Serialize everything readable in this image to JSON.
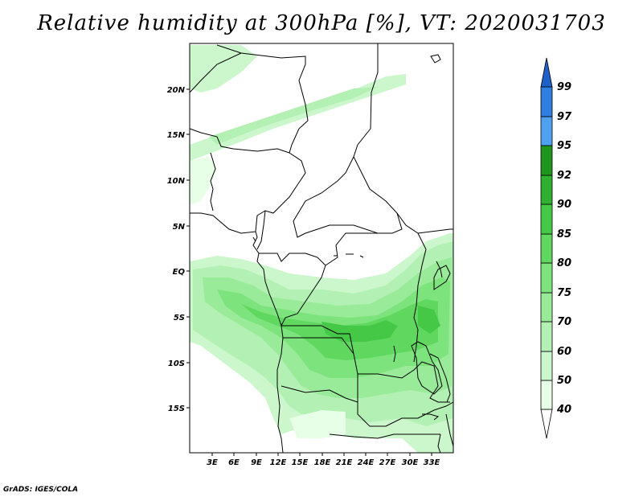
{
  "title": "Relative humidity at 300hPa [%], VT: 2020031703",
  "credit": "GrADS: IGES/COLA",
  "map": {
    "lon_range": [
      0,
      36
    ],
    "lat_range": [
      -20,
      25
    ],
    "lon_labels": [
      "3E",
      "6E",
      "9E",
      "12E",
      "15E",
      "18E",
      "21E",
      "24E",
      "27E",
      "30E",
      "33E"
    ],
    "lat_labels": [
      "20N",
      "15N",
      "10N",
      "5N",
      "EQ",
      "5S",
      "10S",
      "15S"
    ]
  },
  "colorbar": {
    "levels": [
      "40",
      "50",
      "60",
      "70",
      "75",
      "80",
      "85",
      "90",
      "92",
      "95",
      "97",
      "99"
    ],
    "colors": {
      "lt40": "#ffffff",
      "c40_50": "#e6ffe6",
      "c50_60": "#ccf7cc",
      "c60_70": "#b3f0b3",
      "c70_75": "#99ea99",
      "c75_80": "#7de37d",
      "c80_85": "#60d860",
      "c85_90": "#45c845",
      "c90_92": "#30b030",
      "c92_95": "#1e961e",
      "c95_97": "#4ea0f0",
      "c97_99": "#2f7fe0",
      "gt99": "#1e5fc8"
    }
  }
}
